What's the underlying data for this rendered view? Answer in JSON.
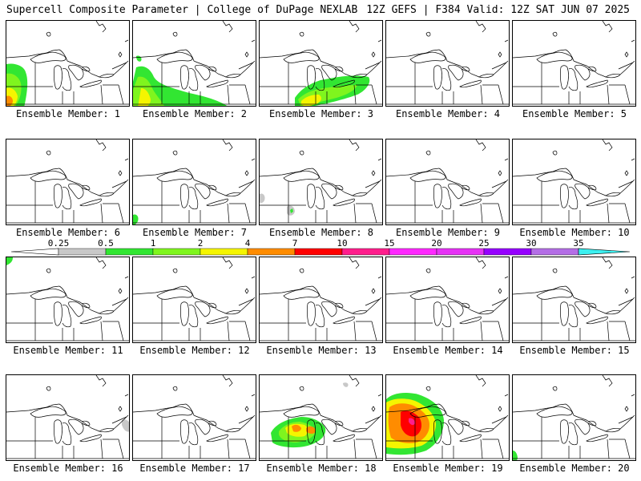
{
  "header": {
    "left": "Supercell Composite Parameter | College of DuPage NEXLAB",
    "right": "12Z GEFS | F384 Valid: 12Z SAT JUN 07 2025"
  },
  "member_label_prefix": "Ensemble Member: ",
  "members": [
    {
      "label": "Ensemble Member: 1",
      "member": "1"
    },
    {
      "label": "Ensemble Member: 2",
      "member": "2"
    },
    {
      "label": "Ensemble Member: 3",
      "member": "3"
    },
    {
      "label": "Ensemble Member: 4",
      "member": "4"
    },
    {
      "label": "Ensemble Member: 5",
      "member": "5"
    },
    {
      "label": "Ensemble Member: 6",
      "member": "6"
    },
    {
      "label": "Ensemble Member: 7",
      "member": "7"
    },
    {
      "label": "Ensemble Member: 8",
      "member": "8"
    },
    {
      "label": "Ensemble Member: 9",
      "member": "9"
    },
    {
      "label": "Ensemble Member: 10",
      "member": "10"
    },
    {
      "label": "Ensemble Member: 11",
      "member": "11"
    },
    {
      "label": "Ensemble Member: 12",
      "member": "12"
    },
    {
      "label": "Ensemble Member: 13",
      "member": "13"
    },
    {
      "label": "Ensemble Member: 14",
      "member": "14"
    },
    {
      "label": "Ensemble Member: 15",
      "member": "15"
    },
    {
      "label": "Ensemble Member: 16",
      "member": "16"
    },
    {
      "label": "Ensemble Member: 17",
      "member": "17"
    },
    {
      "label": "Ensemble Member: 18",
      "member": "18"
    },
    {
      "label": "Ensemble Member: 19",
      "member": "19"
    },
    {
      "label": "Ensemble Member: 20",
      "member": "20"
    }
  ],
  "colorbar": {
    "ticks": [
      "0.25",
      "0.5",
      "1",
      "2",
      "4",
      "7",
      "10",
      "15",
      "20",
      "25",
      "30",
      "35"
    ],
    "colors": [
      "#ffffff",
      "#c8c8c8",
      "#32e632",
      "#7ff51e",
      "#f5f500",
      "#ff8c00",
      "#ff0000",
      "#ff1e8c",
      "#ff28ff",
      "#e632f5",
      "#9600ff",
      "#b46ee6",
      "#3cf0f0"
    ]
  }
}
